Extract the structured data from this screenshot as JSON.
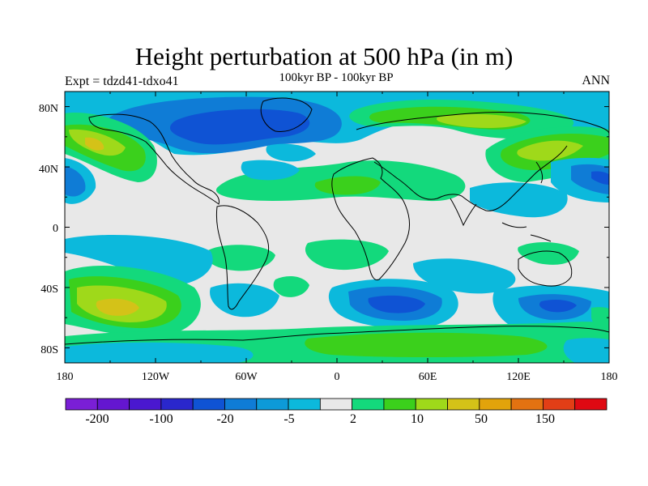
{
  "title": "Height perturbation at 500 hPa (in m)",
  "experiment_label": "Expt = tdzd41-tdxo41",
  "subtitle": "100kyr BP - 100kyr BP",
  "season_label": "ANN",
  "map": {
    "projection": "cylindrical-equidistant",
    "lon_range": [
      -180,
      180
    ],
    "lat_range": [
      -90,
      90
    ],
    "lat_ticks": [
      "80N",
      "40N",
      "0",
      "40S",
      "80S"
    ],
    "lon_ticks": [
      "180",
      "120W",
      "60W",
      "0",
      "60E",
      "120E",
      "180"
    ],
    "field": "500 hPa height perturbation (m)"
  },
  "colorbar": {
    "colors": [
      "#7a1fd6",
      "#6416d0",
      "#4a18cf",
      "#2a27cc",
      "#0f53d4",
      "#0f7cd6",
      "#0d9ad8",
      "#0cb9dc",
      "#e8e8e8",
      "#13d97c",
      "#3bd01c",
      "#9fd91a",
      "#d4c218",
      "#e2a30b",
      "#e37211",
      "#e23e16",
      "#df0912"
    ],
    "labels": [
      "-200",
      "-100",
      "-20",
      "-5",
      "2",
      "10",
      "50",
      "150"
    ]
  }
}
